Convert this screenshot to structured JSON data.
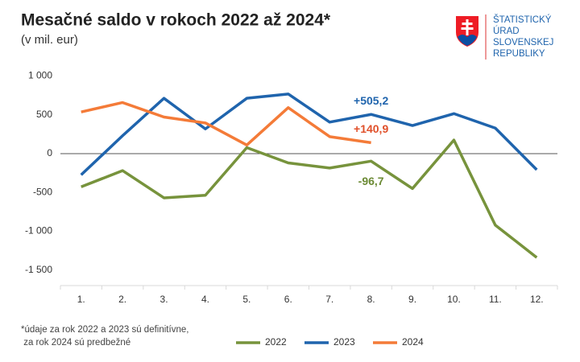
{
  "chart_data": {
    "type": "line",
    "title": "Mesačné saldo v rokoch 2022 až 2024*",
    "subtitle": "(v mil. eur)",
    "footnote": [
      "*údaje za rok 2022 a 2023 sú definitívne,",
      " za rok 2024 sú predbežné"
    ],
    "categories": [
      "1.",
      "2.",
      "3.",
      "4.",
      "5.",
      "6.",
      "7.",
      "8.",
      "9.",
      "10.",
      "11.",
      "12."
    ],
    "series": [
      {
        "name": "2022",
        "color": "#77933c",
        "label_color": "#6b8a34",
        "values": [
          -428,
          -219,
          -570,
          -537,
          77,
          -120,
          -186,
          -96.7,
          -450,
          175,
          -921,
          -1338
        ],
        "value_labels": [
          null,
          null,
          null,
          null,
          null,
          null,
          null,
          "-96,7",
          null,
          null,
          null,
          null
        ]
      },
      {
        "name": "2023",
        "color": "#1f64ad",
        "label_color": "#1f64ad",
        "values": [
          -274,
          230,
          713,
          318,
          713,
          768,
          406,
          505.2,
          362,
          515,
          329,
          -208
        ],
        "value_labels": [
          null,
          null,
          null,
          null,
          null,
          null,
          null,
          "+505,2",
          null,
          null,
          null,
          null
        ]
      },
      {
        "name": "2024",
        "color": "#f47b38",
        "label_color": "#e0502a",
        "values": [
          537,
          658,
          471,
          395,
          110,
          592,
          219,
          140.9,
          null,
          null,
          null,
          null
        ],
        "value_labels": [
          null,
          null,
          null,
          null,
          null,
          null,
          null,
          "+140,9",
          null,
          null,
          null,
          null
        ]
      }
    ],
    "ylim": [
      -1700,
      1150
    ],
    "yticks": [
      {
        "value": 1000,
        "label": "1 000"
      },
      500,
      0,
      -500,
      {
        "value": -1000,
        "label": "-1 000"
      },
      {
        "value": -1500,
        "label": "-1 500"
      }
    ],
    "grid": false
  },
  "logo": {
    "lines": [
      "ŠTATISTICKÝ",
      "ÚRAD",
      "SLOVENSKEJ",
      "REPUBLIKY"
    ]
  }
}
